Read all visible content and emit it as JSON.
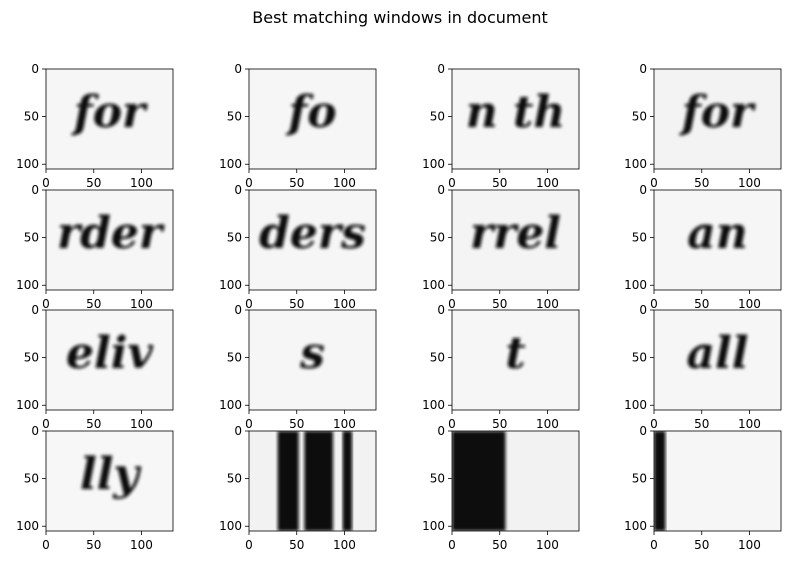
{
  "chart_data": {
    "type": "image-grid",
    "title": "Best matching windows in document",
    "rows": 4,
    "cols": 4,
    "panel": {
      "xlim": [
        0,
        133
      ],
      "ylim": [
        105,
        0
      ],
      "xticks": [
        0,
        50,
        100
      ],
      "yticks": [
        0,
        50,
        100
      ],
      "xtick_labels": [
        "0",
        "50",
        "100"
      ],
      "ytick_labels": [
        "0",
        "50",
        "100"
      ]
    },
    "windows": [
      {
        "content": "handwriting",
        "text": "for",
        "background": "#f6f6f6"
      },
      {
        "content": "handwriting",
        "text": "fo",
        "background": "#f6f6f6"
      },
      {
        "content": "handwriting",
        "text": "n th",
        "background": "#f6f6f6"
      },
      {
        "content": "handwriting",
        "text": "for",
        "background": "#f3f3f3"
      },
      {
        "content": "handwriting",
        "text": "rder",
        "background": "#f6f6f6"
      },
      {
        "content": "handwriting",
        "text": "ders",
        "background": "#f6f6f6"
      },
      {
        "content": "handwriting",
        "text": "rrel",
        "background": "#f4f4f4"
      },
      {
        "content": "handwriting",
        "text": "an",
        "background": "#f6f6f6"
      },
      {
        "content": "handwriting",
        "text": "eliv",
        "background": "#f7f7f7"
      },
      {
        "content": "handwriting",
        "text": "s",
        "background": "#f6f6f6"
      },
      {
        "content": "handwriting",
        "text": "t",
        "background": "#f6f6f6"
      },
      {
        "content": "handwriting",
        "text": "all",
        "background": "#f6f6f6"
      },
      {
        "content": "handwriting",
        "text": "lly",
        "background": "#f7f7f7"
      },
      {
        "content": "dark-bands",
        "bands": [
          [
            30,
            52
          ],
          [
            58,
            88
          ],
          [
            98,
            108
          ]
        ],
        "background": "#f2f2f2"
      },
      {
        "content": "dark-bands",
        "bands": [
          [
            0,
            56
          ]
        ],
        "background": "#f2f2f2"
      },
      {
        "content": "dark-bands",
        "bands": [
          [
            0,
            12
          ]
        ],
        "background": "#f6f6f6"
      }
    ]
  }
}
